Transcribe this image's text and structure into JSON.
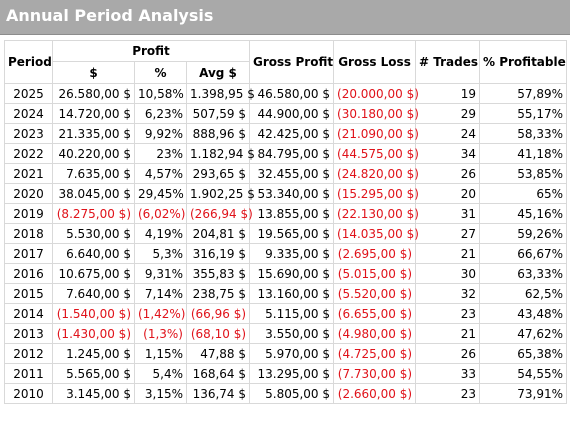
{
  "title": "Annual Period Analysis",
  "headers": {
    "period": "Period",
    "profit": "Profit",
    "dollar": "$",
    "percent": "%",
    "avg": "Avg $",
    "gross_profit": "Gross Profit",
    "gross_loss": "Gross Loss",
    "trades": "# Trades",
    "profitable": "% Profitable"
  },
  "rows": [
    {
      "period": "2025",
      "profit": "26.580,00 $",
      "pct": "10,58%",
      "avg": "1.398,95 $",
      "gp": "46.580,00 $",
      "gl": "(20.000,00 $)",
      "trades": "19",
      "prof": "57,89%",
      "neg": false
    },
    {
      "period": "2024",
      "profit": "14.720,00 $",
      "pct": "6,23%",
      "avg": "507,59 $",
      "gp": "44.900,00 $",
      "gl": "(30.180,00 $)",
      "trades": "29",
      "prof": "55,17%",
      "neg": false
    },
    {
      "period": "2023",
      "profit": "21.335,00 $",
      "pct": "9,92%",
      "avg": "888,96 $",
      "gp": "42.425,00 $",
      "gl": "(21.090,00 $)",
      "trades": "24",
      "prof": "58,33%",
      "neg": false
    },
    {
      "period": "2022",
      "profit": "40.220,00 $",
      "pct": "23%",
      "avg": "1.182,94 $",
      "gp": "84.795,00 $",
      "gl": "(44.575,00 $)",
      "trades": "34",
      "prof": "41,18%",
      "neg": false
    },
    {
      "period": "2021",
      "profit": "7.635,00 $",
      "pct": "4,57%",
      "avg": "293,65 $",
      "gp": "32.455,00 $",
      "gl": "(24.820,00 $)",
      "trades": "26",
      "prof": "53,85%",
      "neg": false
    },
    {
      "period": "2020",
      "profit": "38.045,00 $",
      "pct": "29,45%",
      "avg": "1.902,25 $",
      "gp": "53.340,00 $",
      "gl": "(15.295,00 $)",
      "trades": "20",
      "prof": "65%",
      "neg": false
    },
    {
      "period": "2019",
      "profit": "(8.275,00 $)",
      "pct": "(6,02%)",
      "avg": "(266,94 $)",
      "gp": "13.855,00 $",
      "gl": "(22.130,00 $)",
      "trades": "31",
      "prof": "45,16%",
      "neg": true
    },
    {
      "period": "2018",
      "profit": "5.530,00 $",
      "pct": "4,19%",
      "avg": "204,81 $",
      "gp": "19.565,00 $",
      "gl": "(14.035,00 $)",
      "trades": "27",
      "prof": "59,26%",
      "neg": false
    },
    {
      "period": "2017",
      "profit": "6.640,00 $",
      "pct": "5,3%",
      "avg": "316,19 $",
      "gp": "9.335,00 $",
      "gl": "(2.695,00 $)",
      "trades": "21",
      "prof": "66,67%",
      "neg": false
    },
    {
      "period": "2016",
      "profit": "10.675,00 $",
      "pct": "9,31%",
      "avg": "355,83 $",
      "gp": "15.690,00 $",
      "gl": "(5.015,00 $)",
      "trades": "30",
      "prof": "63,33%",
      "neg": false
    },
    {
      "period": "2015",
      "profit": "7.640,00 $",
      "pct": "7,14%",
      "avg": "238,75 $",
      "gp": "13.160,00 $",
      "gl": "(5.520,00 $)",
      "trades": "32",
      "prof": "62,5%",
      "neg": false
    },
    {
      "period": "2014",
      "profit": "(1.540,00 $)",
      "pct": "(1,42%)",
      "avg": "(66,96 $)",
      "gp": "5.115,00 $",
      "gl": "(6.655,00 $)",
      "trades": "23",
      "prof": "43,48%",
      "neg": true
    },
    {
      "period": "2013",
      "profit": "(1.430,00 $)",
      "pct": "(1,3%)",
      "avg": "(68,10 $)",
      "gp": "3.550,00 $",
      "gl": "(4.980,00 $)",
      "trades": "21",
      "prof": "47,62%",
      "neg": true
    },
    {
      "period": "2012",
      "profit": "1.245,00 $",
      "pct": "1,15%",
      "avg": "47,88 $",
      "gp": "5.970,00 $",
      "gl": "(4.725,00 $)",
      "trades": "26",
      "prof": "65,38%",
      "neg": false
    },
    {
      "period": "2011",
      "profit": "5.565,00 $",
      "pct": "5,4%",
      "avg": "168,64 $",
      "gp": "13.295,00 $",
      "gl": "(7.730,00 $)",
      "trades": "33",
      "prof": "54,55%",
      "neg": false
    },
    {
      "period": "2010",
      "profit": "3.145,00 $",
      "pct": "3,15%",
      "avg": "136,74 $",
      "gp": "5.805,00 $",
      "gl": "(2.660,00 $)",
      "trades": "23",
      "prof": "73,91%",
      "neg": false
    }
  ]
}
